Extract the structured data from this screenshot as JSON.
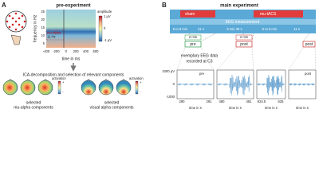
{
  "panel_a": {
    "label": "A",
    "title": "pre-experiment",
    "y_axis_label": "frequency in Hz",
    "y_ticks": [
      "25",
      "20",
      "15",
      "10",
      "5"
    ],
    "x_ticks": [
      "-400",
      "-200",
      "0",
      "200",
      "400",
      "600"
    ],
    "x_axis_label": "time in ms",
    "overlay": [
      "mu-alpha",
      "11 Hz"
    ],
    "colorbar": {
      "title": "amplitude",
      "max": "1 µV",
      "mid": "0",
      "min": "-1 µV"
    },
    "ica_title": "ICA-decomposition and selection of relevant components",
    "activation_label": "activation",
    "plus": "+",
    "minus": "-",
    "groups": [
      {
        "line1": "selected",
        "line2": "mu-alpha components"
      },
      {
        "line1": "selected",
        "line2": "visual alpha components"
      }
    ]
  },
  "panel_b": {
    "label": "B",
    "title": "main experiment",
    "sham": "sham",
    "stim": "mu-tACS",
    "eeg": "EEG measurement",
    "segments": [
      "5 to 8 min",
      "41 s",
      "9 min 30 s",
      "5 to 8 min",
      "11 s"
    ],
    "two_min": "2 min",
    "pre": "pre",
    "post": "post",
    "example_title": [
      "exemplary EEG data",
      "recorded at C3"
    ],
    "y_ticks": [
      "1000 µV",
      "0",
      "-1000"
    ],
    "x_ticks": [
      [
        "290",
        "291"
      ],
      [
        "480",
        "481"
      ],
      [
        "624.5",
        "625"
      ]
    ],
    "x_axis_label": "time in s"
  }
}
